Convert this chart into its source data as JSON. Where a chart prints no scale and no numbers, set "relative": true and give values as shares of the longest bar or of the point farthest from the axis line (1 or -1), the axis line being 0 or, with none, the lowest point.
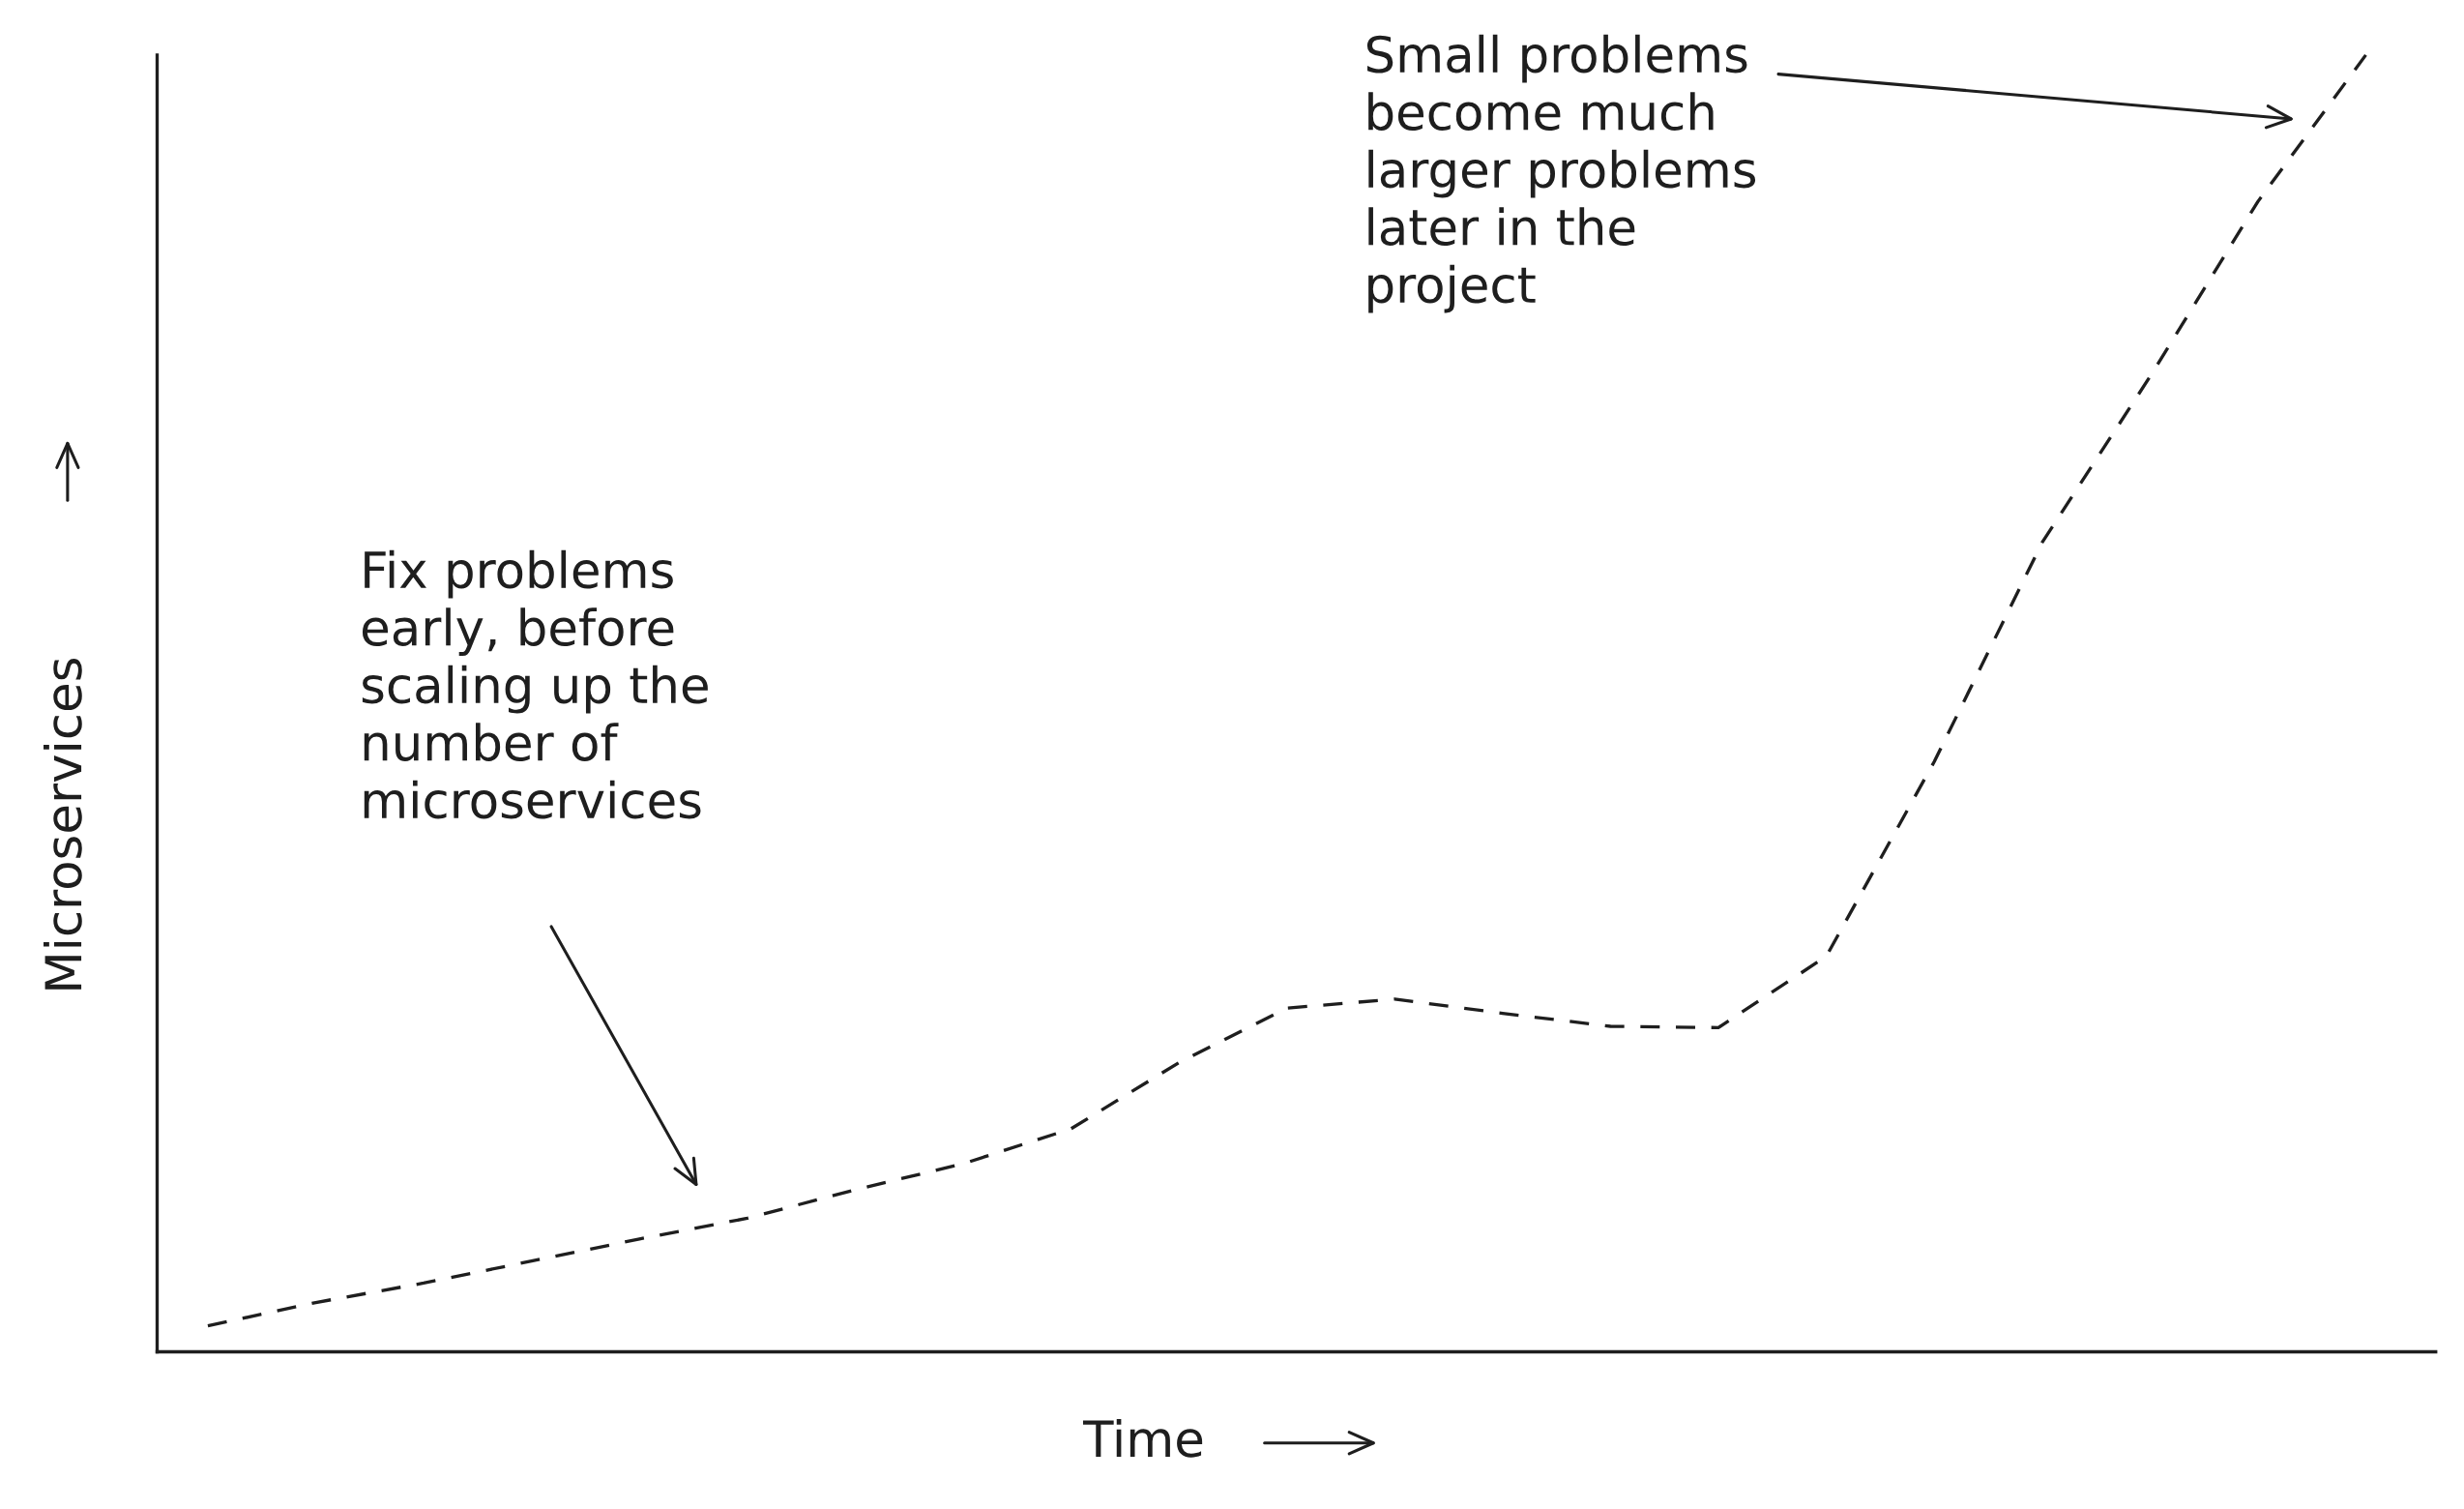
{
  "chart_data": {
    "type": "line",
    "relative": true,
    "xlabel": "Time",
    "ylabel": "Microservices",
    "categories": [
      null,
      null,
      null,
      null,
      null,
      null,
      null,
      null,
      null,
      null,
      null,
      null,
      null,
      null,
      null,
      null,
      null,
      null,
      null,
      null,
      null
    ],
    "series": [
      {
        "color": "#1e1e1e",
        "values": [
          0.02,
          0.038,
          0.053,
          0.07,
          0.087,
          0.103,
          0.125,
          0.145,
          0.172,
          0.223,
          0.265,
          0.272,
          0.261,
          0.251,
          0.25,
          0.305,
          0.455,
          0.624,
          0.752,
          0.887,
          1.0
        ]
      }
    ],
    "line_style": "dashed",
    "marker": "none",
    "grid": false,
    "legend": false,
    "annotations": [
      "Fix problems\nearly, before\nscaling up the\nnumber of\nmicroservices",
      "Small problems\nbecome much\nlarger problems\nlater in the\nproject"
    ]
  }
}
